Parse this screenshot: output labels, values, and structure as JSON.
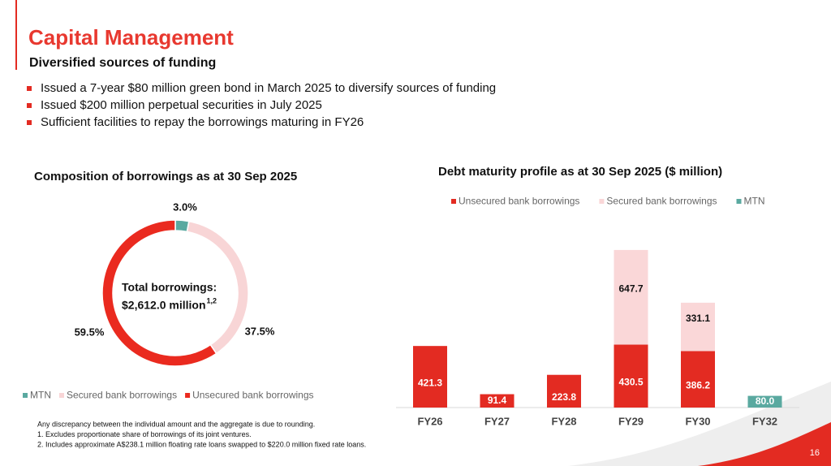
{
  "header": {
    "title": "Capital Management",
    "subtitle": "Diversified sources of funding"
  },
  "bullets": [
    "Issued a 7-year $80 million green bond in March 2025 to diversify sources of funding",
    "Issued $200 million perpetual securities in July 2025",
    "Sufficient facilities to repay the borrowings maturing in FY26"
  ],
  "chart_data": [
    {
      "type": "donut",
      "title": "Composition of borrowings as at 30 Sep 2025",
      "categories": [
        "MTN",
        "Secured bank borrowings",
        "Unsecured bank borrowings"
      ],
      "values": [
        3.0,
        37.5,
        59.5
      ],
      "value_labels": [
        "3.0%",
        "37.5%",
        "59.5%"
      ],
      "colors": [
        "#5aa9a0",
        "#f8d5d6",
        "#ea2a1f"
      ],
      "center_label": [
        "Total borrowings:",
        "$2,612.0 million"
      ],
      "center_label_note": "1,2",
      "legend": "bottom"
    },
    {
      "type": "stacked-bar",
      "title": "Debt maturity profile as at 30 Sep 2025 ($ million)",
      "categories": [
        "FY26",
        "FY27",
        "FY28",
        "FY29",
        "FY30",
        "FY32"
      ],
      "series": [
        {
          "name": "Unsecured bank borrowings",
          "color": "#e32b22",
          "values": [
            421.3,
            91.4,
            223.8,
            430.5,
            386.2,
            null
          ]
        },
        {
          "name": "Secured bank borrowings",
          "color": "#fad7d8",
          "values": [
            null,
            null,
            null,
            647.7,
            331.1,
            null
          ]
        },
        {
          "name": "MTN",
          "color": "#5aa9a0",
          "values": [
            null,
            null,
            null,
            null,
            null,
            80.0
          ],
          "value_labels": [
            null,
            null,
            null,
            null,
            null,
            "80.0"
          ]
        }
      ],
      "legend": "top"
    }
  ],
  "footnotes": [
    "Any discrepancy between the individual amount and the aggregate is due to rounding.",
    "1. Excludes proportionate share of borrowings of its joint ventures.",
    "2. Includes approximate A$238.1 million floating rate loans swapped to $220.0 million fixed rate loans."
  ],
  "page_number": "16"
}
